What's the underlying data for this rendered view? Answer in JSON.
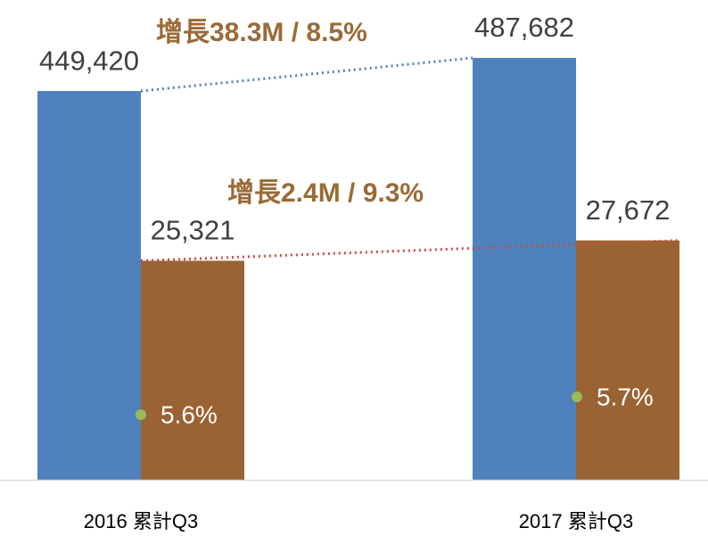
{
  "chart_data": {
    "type": "bar",
    "categories": [
      "2016 累計Q3",
      "2017 累計Q3"
    ],
    "series": [
      {
        "name": null,
        "color": "#4f81bd",
        "values": [
          449420,
          487682
        ],
        "value_labels": [
          "449,420",
          "487,682"
        ]
      },
      {
        "name": null,
        "color": "#9a6333",
        "values": [
          25321,
          27672
        ],
        "value_labels": [
          "25,321",
          "27,672"
        ],
        "axis": "y2"
      }
    ],
    "ylim": [
      0,
      500000
    ],
    "y2lim": [
      0,
      50000
    ],
    "annotations": [
      "增長38.3M / 8.5%",
      "增長2.4M / 9.3%",
      "5.6%",
      "5.7%"
    ]
  }
}
